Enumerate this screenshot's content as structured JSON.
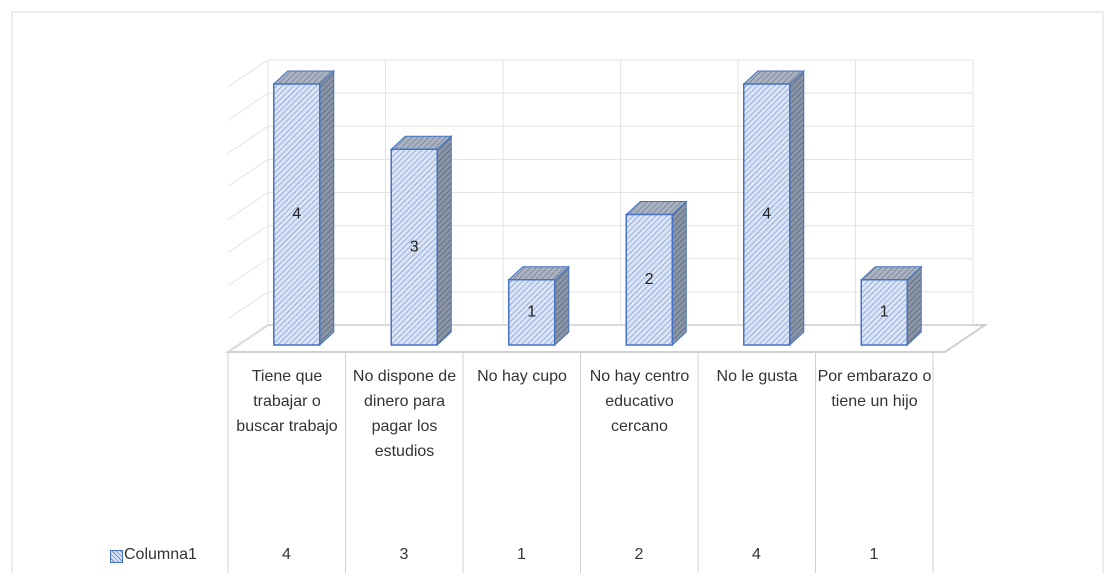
{
  "chart_data": {
    "type": "bar3d",
    "categories": [
      "Tiene que trabajar o buscar trabajo",
      "No dispone de dinero para pagar los estudios",
      "No hay cupo",
      "No hay centro educativo cercano",
      "No le gusta",
      "Por embarazo o tiene un hijo"
    ],
    "series": [
      {
        "name": "Columna1",
        "color": "#4472c4",
        "values": [
          4,
          3,
          1,
          2,
          4,
          1
        ]
      }
    ],
    "ylim": [
      0,
      4
    ],
    "yticks": [
      0,
      0.5,
      1,
      1.5,
      2,
      2.5,
      3,
      3.5,
      4
    ],
    "grid": true,
    "data_table": true
  }
}
